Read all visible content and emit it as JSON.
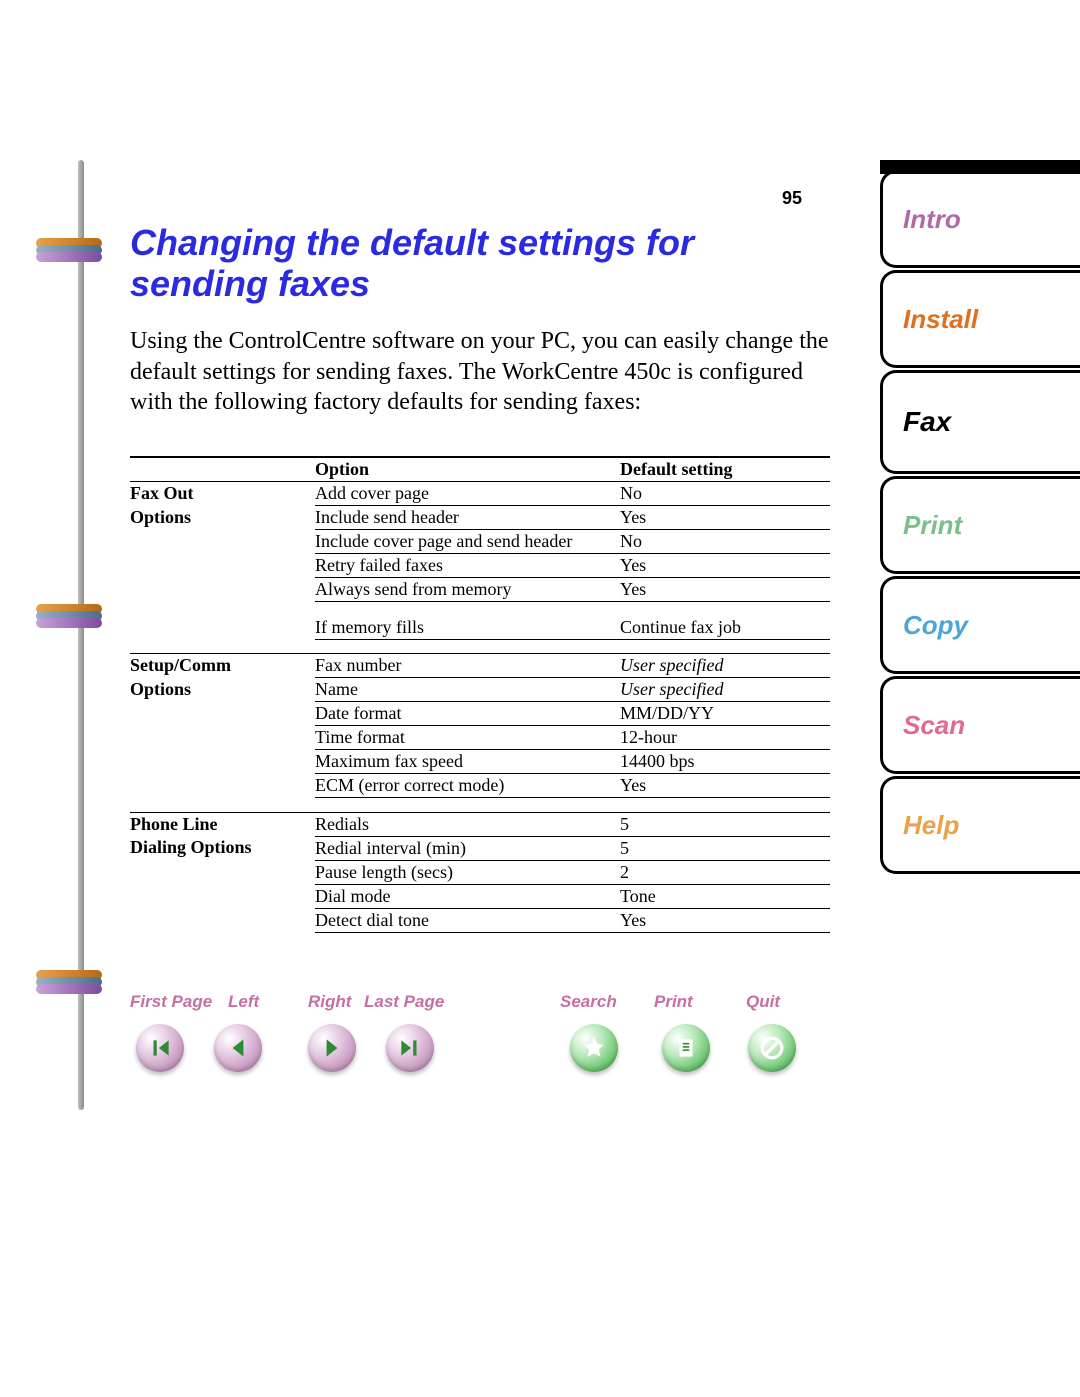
{
  "page_number": "95",
  "title": "Changing the default settings for sending faxes",
  "intro": "Using the ControlCentre software on your PC, you can easily change the default settings for sending faxes. The WorkCentre 450c is configured with the following factory defaults for sending faxes:",
  "table": {
    "headers": {
      "col1": "",
      "col2": "Option",
      "col3": "Default setting"
    },
    "sections": [
      {
        "label_line1": "Fax Out",
        "label_line2": "Options",
        "rows": [
          {
            "opt": "Add cover page",
            "val": "No",
            "ital": false
          },
          {
            "opt": "Include send header",
            "val": "Yes",
            "ital": false
          },
          {
            "opt": "Include cover page and send header",
            "val": "No",
            "ital": false
          },
          {
            "opt": "Retry failed faxes",
            "val": "Yes",
            "ital": false
          },
          {
            "opt": "Always send from memory",
            "val": "Yes",
            "ital": false
          },
          {
            "opt": "If memory fills",
            "val": "Continue fax job",
            "ital": false,
            "gap_before": true
          }
        ]
      },
      {
        "label_line1": "Setup/Comm",
        "label_line2": "Options",
        "rows": [
          {
            "opt": "Fax number",
            "val": "User specified",
            "ital": true
          },
          {
            "opt": "Name",
            "val": "User specified",
            "ital": true
          },
          {
            "opt": "Date format",
            "val": "MM/DD/YY",
            "ital": false
          },
          {
            "opt": "Time format",
            "val": "12-hour",
            "ital": false
          },
          {
            "opt": "Maximum fax speed",
            "val": "14400 bps",
            "ital": false
          },
          {
            "opt": "ECM (error correct mode)",
            "val": "Yes",
            "ital": false
          }
        ]
      },
      {
        "label_line1": "Phone Line",
        "label_line2": "Dialing Options",
        "rows": [
          {
            "opt": "Redials",
            "val": "5",
            "ital": false
          },
          {
            "opt": "Redial interval (min)",
            "val": "5",
            "ital": false
          },
          {
            "opt": "Pause length (secs)",
            "val": "2",
            "ital": false
          },
          {
            "opt": "Dial mode",
            "val": "Tone",
            "ital": false
          },
          {
            "opt": "Detect dial tone",
            "val": "Yes",
            "ital": false
          }
        ]
      }
    ]
  },
  "nav": {
    "first": "First Page",
    "left": "Left",
    "right": "Right",
    "last": "Last Page",
    "search": "Search",
    "print": "Print",
    "quit": "Quit"
  },
  "tabs": [
    {
      "label": "Intro",
      "color": "#b06aa5"
    },
    {
      "label": "Install",
      "color": "#e0701e"
    },
    {
      "label": "Fax",
      "color": "#000000",
      "current": true
    },
    {
      "label": "Print",
      "color": "#7ac088"
    },
    {
      "label": "Copy",
      "color": "#4aa6d4"
    },
    {
      "label": "Scan",
      "color": "#e06a94"
    },
    {
      "label": "Help",
      "color": "#e9a24b"
    }
  ],
  "colors": {
    "title": "#2a2ae0",
    "nav_label": "#c66fa3"
  }
}
